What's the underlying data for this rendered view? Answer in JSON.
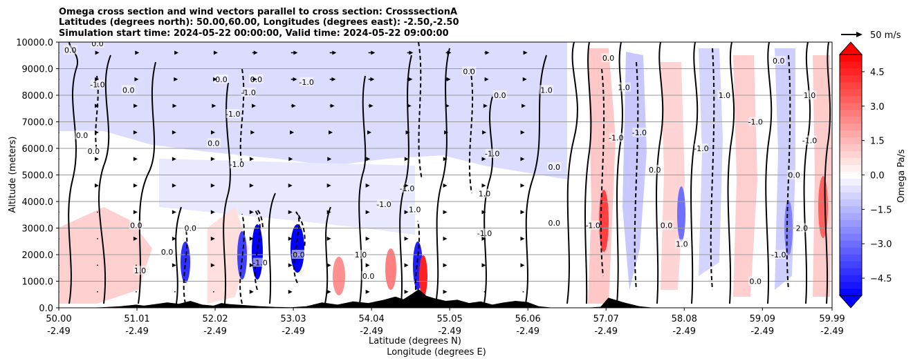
{
  "chart_data": {
    "type": "heatmap",
    "title_lines": [
      "Omega cross section and wind vectors parallel to cross section: CrosssectionA",
      "Latitudes (degrees north): 50.00,60.00, Longitudes (degrees east): -2.50,-2.50",
      "Simulation start time: 2024-05-22 00:00:00, Valid time: 2024-05-22 09:00:00"
    ],
    "ylabel": "Altitude (meters)",
    "xlabel_lines": [
      "Latitude (degrees N)",
      "Longitude (degrees E)"
    ],
    "ylim": [
      0,
      10000
    ],
    "yticks": [
      0,
      1000,
      2000,
      3000,
      4000,
      5000,
      6000,
      7000,
      8000,
      9000,
      10000
    ],
    "ytick_labels": [
      "0.0",
      "1000.0",
      "2000.0",
      "3000.0",
      "4000.0",
      "5000.0",
      "6000.0",
      "7000.0",
      "8000.0",
      "9000.0",
      "10000.0"
    ],
    "xlim": [
      50.0,
      59.99
    ],
    "xticks": [
      50.0,
      51.01,
      52.02,
      53.03,
      54.04,
      55.05,
      56.06,
      57.07,
      58.08,
      59.09,
      59.99
    ],
    "xtick_lat_labels": [
      "50.00",
      "51.01",
      "52.02",
      "53.03",
      "54.04",
      "55.05",
      "56.06",
      "57.07",
      "58.08",
      "59.09",
      "59.99"
    ],
    "xtick_lon_labels": [
      "-2.49",
      "-2.49",
      "-2.49",
      "-2.49",
      "-2.49",
      "-2.49",
      "-2.49",
      "-2.49",
      "-2.49",
      "-2.49",
      "-2.49"
    ],
    "grid": "horizontal",
    "colorbar": {
      "label": "Omega Pa/s",
      "range": [
        -5.25,
        5.25
      ],
      "step": 0.3,
      "extend": "both",
      "cmap": "bwr",
      "tick_values": [
        4.5,
        3.0,
        1.5,
        0.0,
        -1.5,
        -3.0,
        -4.5
      ],
      "tick_labels": [
        "4.5",
        "3.0",
        "1.5",
        "0.0",
        "−1.5",
        "−3.0",
        "−4.5"
      ]
    },
    "vector_key": {
      "label": "50 m/s",
      "value": 50
    },
    "contour_levels": [
      -1.0,
      0.0,
      1.0
    ],
    "contour_labels": [
      {
        "text": "0.0",
        "x": 50.15,
        "y": 9700
      },
      {
        "text": "0.0",
        "x": 50.5,
        "y": 9950
      },
      {
        "text": "-1.0",
        "x": 50.5,
        "y": 8400
      },
      {
        "text": "0.0",
        "x": 50.9,
        "y": 8200
      },
      {
        "text": "0.0",
        "x": 50.3,
        "y": 6500
      },
      {
        "text": "0.0",
        "x": 50.45,
        "y": 5900
      },
      {
        "text": "0.0",
        "x": 51.0,
        "y": 3100
      },
      {
        "text": "0.0",
        "x": 51.4,
        "y": 2100
      },
      {
        "text": "1.0",
        "x": 51.05,
        "y": 1400
      },
      {
        "text": "0.0",
        "x": 51.7,
        "y": 3000
      },
      {
        "text": "0.0",
        "x": 52.0,
        "y": 6200
      },
      {
        "text": "-1.0",
        "x": 52.25,
        "y": 7300
      },
      {
        "text": "0.0",
        "x": 52.1,
        "y": 8600
      },
      {
        "text": "-1.0",
        "x": 52.45,
        "y": 8100
      },
      {
        "text": "0.0",
        "x": 52.55,
        "y": 8600
      },
      {
        "text": "-1.0",
        "x": 52.3,
        "y": 5400
      },
      {
        "text": "-1.0",
        "x": 54.2,
        "y": 3900
      },
      {
        "text": "1.0",
        "x": 53.9,
        "y": 2000
      },
      {
        "text": "0.0",
        "x": 54.0,
        "y": 1200
      },
      {
        "text": "-1.0",
        "x": 53.2,
        "y": 8500
      },
      {
        "text": "-1.0",
        "x": 54.5,
        "y": 4500
      },
      {
        "text": "1.0",
        "x": 54.6,
        "y": 3700
      },
      {
        "text": "0.0",
        "x": 55.3,
        "y": 8900
      },
      {
        "text": "0.0",
        "x": 55.7,
        "y": 8000
      },
      {
        "text": "-1.0",
        "x": 55.6,
        "y": 5800
      },
      {
        "text": "1.0",
        "x": 55.5,
        "y": 4300
      },
      {
        "text": "-1.0",
        "x": 55.5,
        "y": 2800
      },
      {
        "text": "0.0",
        "x": 56.4,
        "y": 5300
      },
      {
        "text": "0.0",
        "x": 56.4,
        "y": 3200
      },
      {
        "text": "1.0",
        "x": 56.3,
        "y": 8200
      },
      {
        "text": "0.0",
        "x": 57.1,
        "y": 9400
      },
      {
        "text": "-1.0",
        "x": 57.2,
        "y": 6400
      },
      {
        "text": "1.0",
        "x": 57.3,
        "y": 8300
      },
      {
        "text": "-1.0",
        "x": 57.5,
        "y": 6600
      },
      {
        "text": "0.0",
        "x": 57.7,
        "y": 5200
      },
      {
        "text": "0.0",
        "x": 57.85,
        "y": 3100
      },
      {
        "text": "1.0",
        "x": 58.05,
        "y": 2400
      },
      {
        "text": "-1.0",
        "x": 58.3,
        "y": 6000
      },
      {
        "text": "1.0",
        "x": 58.6,
        "y": 8000
      },
      {
        "text": "-1.0",
        "x": 59.0,
        "y": 7000
      },
      {
        "text": "0.0",
        "x": 59.3,
        "y": 9300
      },
      {
        "text": "1.0",
        "x": 59.7,
        "y": 8000
      },
      {
        "text": "-1.0",
        "x": 59.7,
        "y": 6300
      },
      {
        "text": "0.0",
        "x": 59.5,
        "y": 5000
      },
      {
        "text": "2.0",
        "x": 59.6,
        "y": 3000
      },
      {
        "text": "-1.0",
        "x": 59.3,
        "y": 2000
      },
      {
        "text": "0.0",
        "x": 59.0,
        "y": 1000
      },
      {
        "text": "-1.0",
        "x": 56.9,
        "y": 3100
      },
      {
        "text": "0.0",
        "x": 53.1,
        "y": 2000
      },
      {
        "text": "-1.0",
        "x": 52.6,
        "y": 1700
      }
    ],
    "terrain_lat": [
      50.0,
      50.3,
      50.55,
      50.8,
      51.0,
      51.1,
      51.25,
      51.4,
      51.55,
      51.7,
      51.85,
      52.0,
      52.1,
      52.2,
      52.4,
      52.6,
      52.8,
      53.0,
      53.2,
      53.4,
      53.6,
      53.8,
      54.0,
      54.2,
      54.35,
      54.45,
      54.55,
      54.65,
      54.75,
      54.85,
      55.0,
      55.15,
      55.3,
      55.45,
      55.6,
      55.75,
      55.9,
      56.05,
      56.2,
      56.4,
      56.6,
      56.8,
      57.0,
      57.1,
      57.3,
      57.5,
      57.7,
      57.9,
      58.1,
      58.4,
      58.7,
      59.0,
      59.3,
      59.6,
      59.99
    ],
    "terrain_alt": [
      0,
      0,
      20,
      60,
      120,
      80,
      140,
      200,
      150,
      260,
      120,
      80,
      180,
      140,
      100,
      60,
      30,
      20,
      60,
      200,
      120,
      240,
      180,
      300,
      420,
      320,
      500,
      700,
      450,
      360,
      260,
      300,
      180,
      240,
      120,
      200,
      260,
      220,
      60,
      0,
      0,
      0,
      40,
      380,
      200,
      60,
      0,
      0,
      0,
      0,
      0,
      0,
      0,
      0,
      0
    ],
    "wind_rows_alt": [
      9600,
      8600,
      7600,
      6600,
      5600,
      4600,
      3600,
      2600,
      1600,
      600
    ],
    "wind_cols_lat": [
      50.0,
      50.5,
      51.0,
      51.5,
      52.0,
      52.5,
      53.0,
      53.5,
      54.0,
      54.5,
      55.0,
      55.5,
      56.0
    ],
    "wind_u_ms": [
      [
        0,
        6,
        10,
        12,
        14,
        18,
        22,
        22,
        22,
        20,
        18,
        16,
        14
      ],
      [
        0,
        5,
        8,
        10,
        12,
        16,
        20,
        20,
        20,
        18,
        16,
        14,
        12
      ],
      [
        0,
        3,
        5,
        6,
        8,
        12,
        16,
        16,
        16,
        14,
        12,
        10,
        8
      ],
      [
        0,
        2,
        3,
        4,
        5,
        8,
        10,
        10,
        10,
        9,
        8,
        6,
        5
      ],
      [
        0,
        1,
        2,
        2,
        3,
        5,
        6,
        6,
        6,
        5,
        5,
        4,
        3
      ],
      [
        0,
        1,
        1,
        1,
        2,
        3,
        3,
        3,
        3,
        3,
        3,
        2,
        2
      ],
      [
        0,
        0,
        1,
        1,
        1,
        1,
        2,
        2,
        2,
        2,
        2,
        1,
        1
      ],
      [
        0,
        0,
        1,
        1,
        1,
        1,
        1,
        1,
        1,
        1,
        1,
        1,
        1
      ],
      [
        0,
        0,
        0,
        1,
        1,
        1,
        1,
        1,
        1,
        1,
        1,
        1,
        1
      ],
      [
        0,
        0,
        0,
        0,
        0,
        1,
        1,
        1,
        1,
        1,
        1,
        0,
        0
      ]
    ]
  }
}
